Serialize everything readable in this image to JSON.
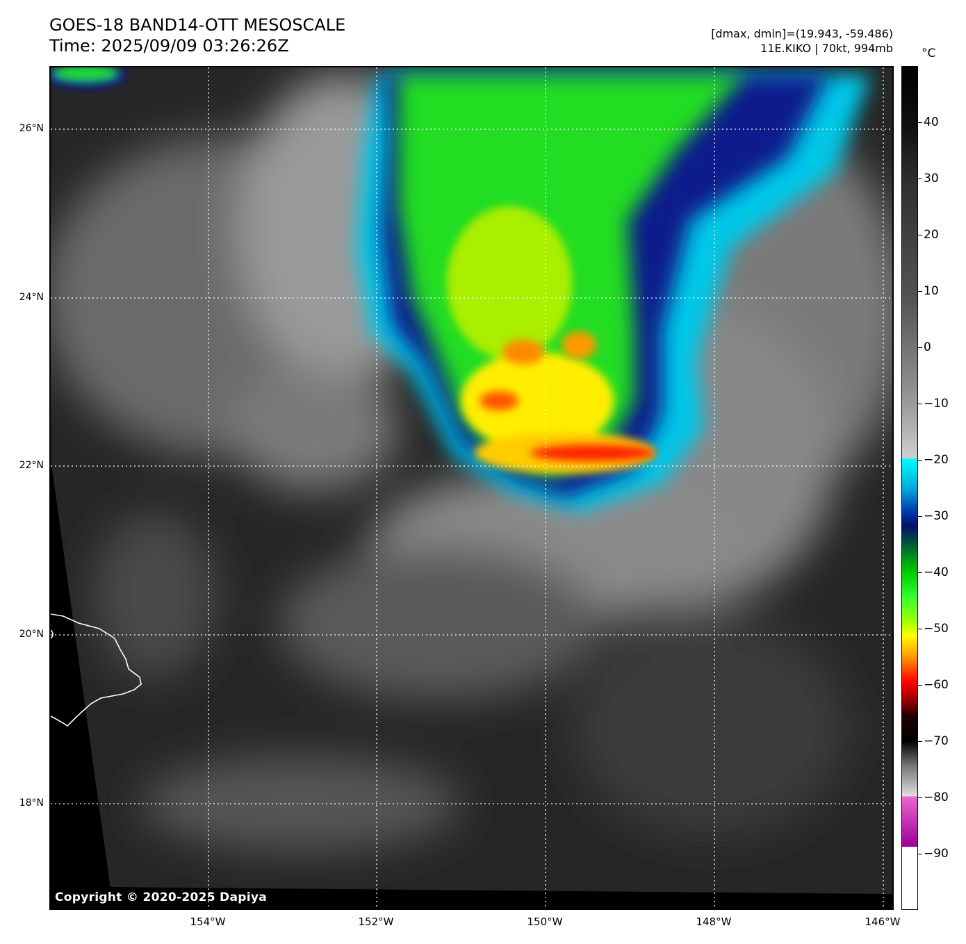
{
  "header": {
    "title_line1": "GOES-18 BAND14-OTT MESOSCALE",
    "title_line2": "Time: 2025/09/09 03:26:26Z",
    "dmax_dmin": "[dmax, dmin]=(19.943, -59.486)",
    "storm_info": "11E.KIKO | 70kt, 994mb"
  },
  "map": {
    "copyright": "Copyright © 2020-2025 Dapiya",
    "lat_labels": [
      "26°N",
      "24°N",
      "22°N",
      "20°N",
      "18°N"
    ],
    "lon_labels": [
      "154°W",
      "152°W",
      "150°W",
      "148°W",
      "146°W"
    ],
    "lat_values": [
      26,
      24,
      22,
      20,
      18
    ],
    "lon_values": [
      -154,
      -152,
      -150,
      -148,
      -146
    ],
    "extent": {
      "lon_min": -155.88,
      "lon_max": -145.88,
      "lat_min": 16.75,
      "lat_max": 26.75
    }
  },
  "colorbar": {
    "unit": "°C",
    "tick_labels": [
      "40",
      "30",
      "20",
      "10",
      "0",
      "−10",
      "−20",
      "−30",
      "−40",
      "−50",
      "−60",
      "−70",
      "−80",
      "−90"
    ],
    "tick_values": [
      40,
      30,
      20,
      10,
      0,
      -10,
      -20,
      -30,
      -40,
      -50,
      -60,
      -70,
      -80,
      -90
    ],
    "range": [
      -100,
      50
    ]
  },
  "colors": {
    "cloud_cyan": "#00e0ff",
    "cloud_blue": "#0a1a8c",
    "cloud_green": "#22dd22",
    "cloud_yellow": "#ffee00",
    "cloud_red": "#ff2200",
    "background_gray": "#2a2a2a"
  }
}
